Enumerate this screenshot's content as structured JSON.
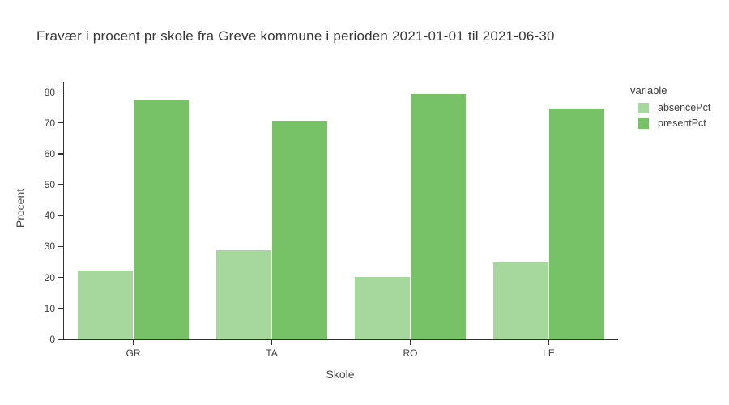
{
  "title": "Fravær i procent pr skole fra Greve kommune i perioden 2021-01-01 til 2021-06-30",
  "chart_data": {
    "type": "bar",
    "title": "Fravær i procent pr skole fra Greve kommune i perioden 2021-01-01 til 2021-06-30",
    "xlabel": "Skole",
    "ylabel": "Procent",
    "categories": [
      "GR",
      "TA",
      "RO",
      "LE"
    ],
    "series": [
      {
        "name": "absencePct",
        "color": "#a6d89d",
        "values": [
          22.4,
          28.9,
          20.3,
          25.0
        ]
      },
      {
        "name": "presentPct",
        "color": "#77c166",
        "values": [
          77.2,
          70.7,
          79.3,
          74.7
        ]
      }
    ],
    "ylim": [
      0,
      83.3
    ],
    "yticks": [
      0,
      10,
      20,
      30,
      40,
      50,
      60,
      70,
      80
    ],
    "grid": false,
    "legend_title": "variable",
    "legend_position": "right",
    "bar_group_gap_fraction": 0.2
  },
  "colors": {
    "background": "#ffffff",
    "axis_line": "#323232",
    "text": "#3d3d3d",
    "absence_green": "#a6d89d",
    "present_green": "#77c166"
  }
}
